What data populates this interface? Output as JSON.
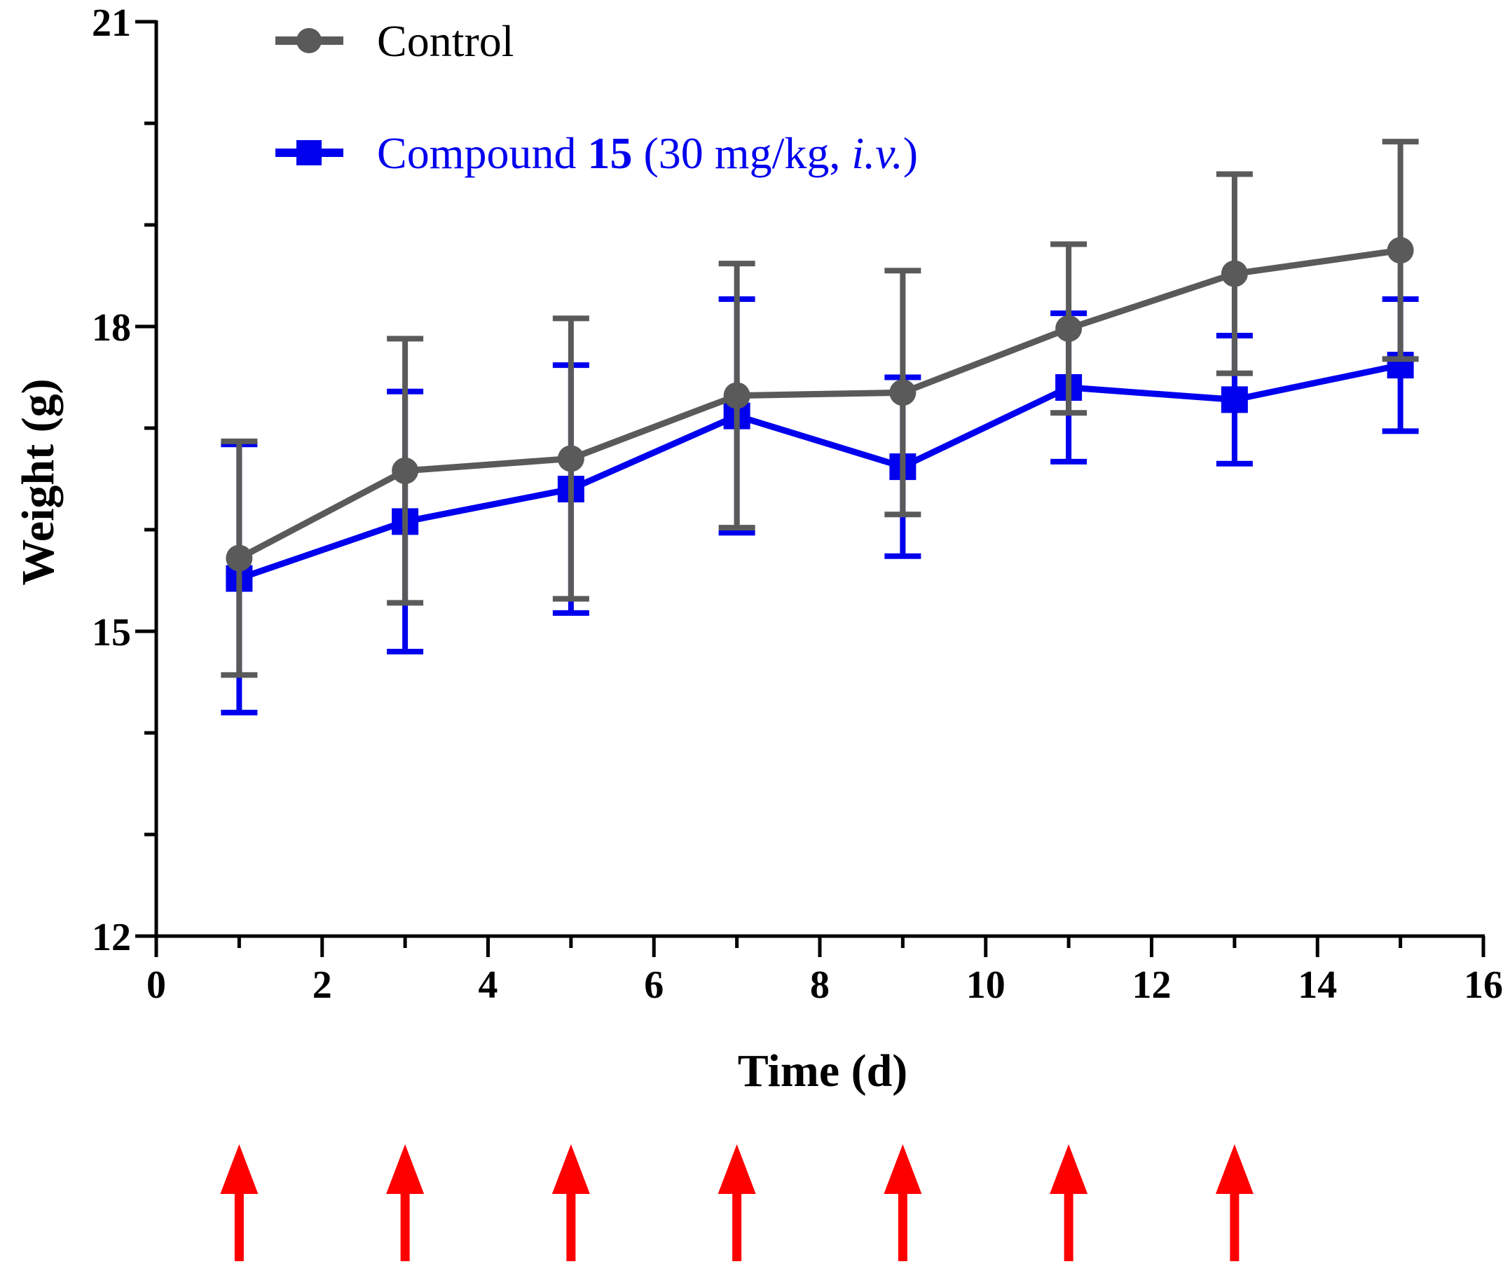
{
  "chart_data": {
    "type": "line",
    "title": "",
    "xlabel": "Time (d)",
    "ylabel": "Weight (g)",
    "xlim": [
      0,
      16
    ],
    "ylim": [
      12,
      21
    ],
    "x_ticks": [
      0,
      2,
      4,
      6,
      8,
      10,
      12,
      14,
      16
    ],
    "x_tick_labels": [
      "0",
      "2",
      "4",
      "6",
      "8",
      "10",
      "12",
      "14",
      "16"
    ],
    "y_major_ticks": [
      12,
      15,
      18,
      21
    ],
    "y_tick_labels": [
      "12",
      "15",
      "18",
      "21"
    ],
    "y_minor_ticks": [
      13,
      14,
      16,
      17,
      19,
      20
    ],
    "x_minor_ticks": [
      1,
      3,
      5,
      7,
      9,
      11,
      13,
      15
    ],
    "grid": false,
    "legend_position": "top-left",
    "series": [
      {
        "name": "Control",
        "color": "#5a5a5a",
        "marker": "circle",
        "x": [
          1,
          3,
          5,
          7,
          9,
          11,
          13,
          15
        ],
        "values": [
          15.72,
          16.58,
          16.7,
          17.32,
          17.35,
          17.98,
          18.52,
          18.75
        ],
        "errors": [
          1.15,
          1.3,
          1.38,
          1.3,
          1.2,
          0.83,
          0.98,
          1.07
        ]
      },
      {
        "name": "Compound 15 (30 mg/kg, i.v.)",
        "color": "#0000ee",
        "marker": "square",
        "x": [
          1,
          3,
          5,
          7,
          9,
          11,
          13,
          15
        ],
        "values": [
          15.52,
          16.08,
          16.4,
          17.12,
          16.62,
          17.4,
          17.28,
          17.62
        ],
        "errors": [
          1.32,
          1.28,
          1.22,
          1.15,
          0.88,
          0.73,
          0.63,
          0.65
        ]
      }
    ],
    "legend": {
      "control_label": "Control",
      "compound_prefix": "Compound ",
      "compound_number": "15",
      "compound_mid": " (30 mg/kg, ",
      "compound_route": "i.v.",
      "compound_suffix": ")"
    },
    "annotations": {
      "arrows": {
        "label": "dosing days",
        "x_values": [
          1,
          3,
          5,
          7,
          9,
          11,
          13
        ],
        "color": "#ff0000"
      }
    }
  }
}
